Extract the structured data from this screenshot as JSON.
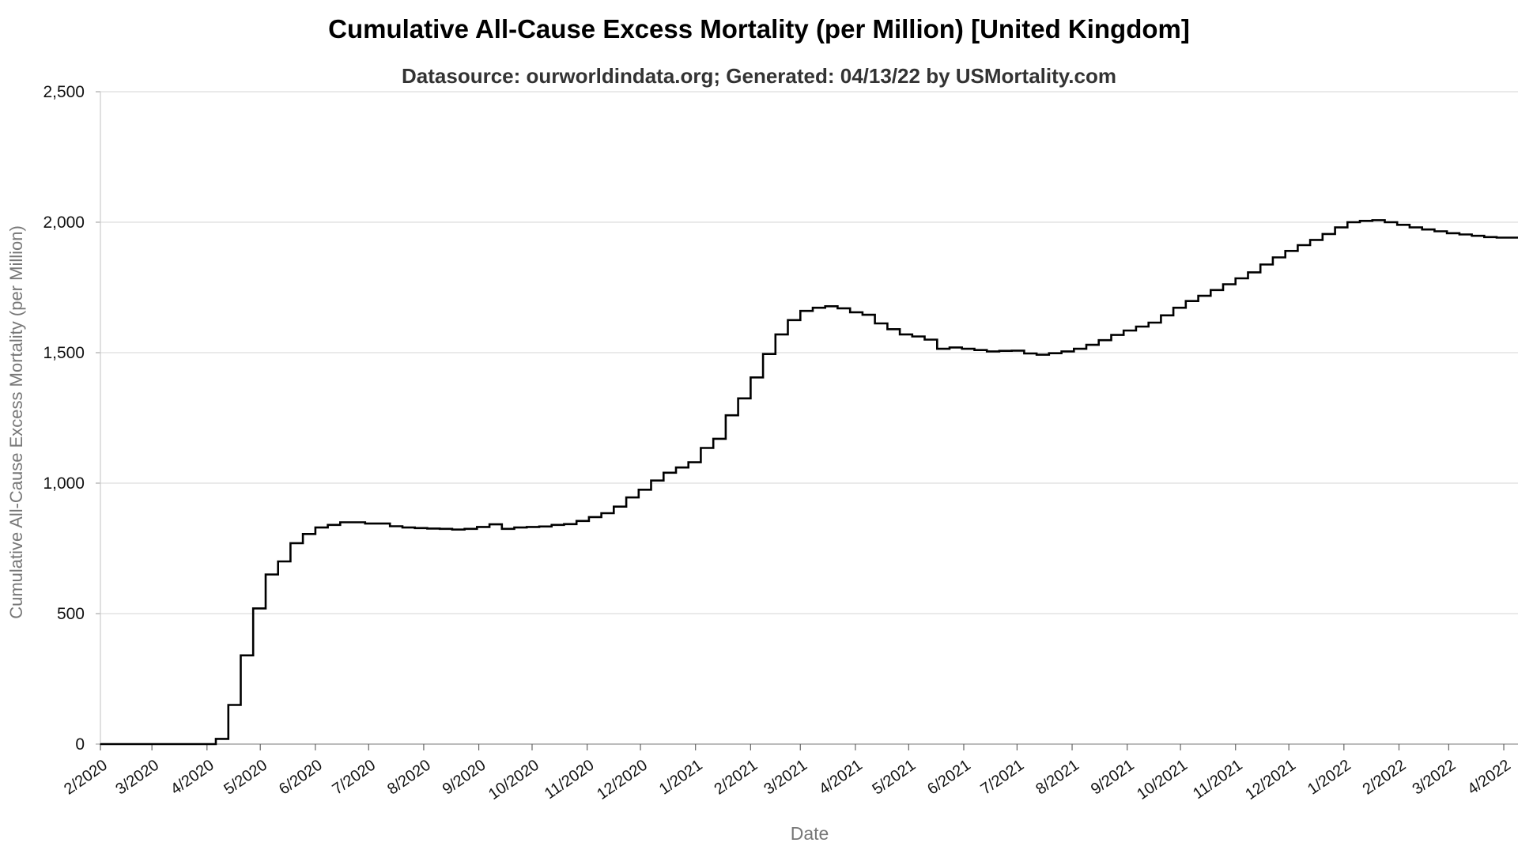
{
  "chart_data": {
    "type": "line",
    "title": "Cumulative All-Cause Excess Mortality (per Million) [United Kingdom]",
    "subtitle": "Datasource: ourworldindata.org; Generated: 04/13/22 by USMortality.com",
    "xlabel": "Date",
    "ylabel": "Cumulative All-Cause Excess Mortality (per Million)",
    "ylim": [
      0,
      2500
    ],
    "y_ticks": [
      0,
      500,
      1000,
      1500,
      2000,
      2500
    ],
    "y_tick_labels": [
      "0",
      "500",
      "1,000",
      "1,500",
      "2,000",
      "2,500"
    ],
    "x_ticks": [
      "2020-02-01",
      "2020-03-01",
      "2020-04-01",
      "2020-05-01",
      "2020-06-01",
      "2020-07-01",
      "2020-08-01",
      "2020-09-01",
      "2020-10-01",
      "2020-11-01",
      "2020-12-01",
      "2021-01-01",
      "2021-02-01",
      "2021-03-01",
      "2021-04-01",
      "2021-05-01",
      "2021-06-01",
      "2021-07-01",
      "2021-08-01",
      "2021-09-01",
      "2021-10-01",
      "2021-11-01",
      "2021-12-01",
      "2022-01-01",
      "2022-02-01",
      "2022-03-01",
      "2022-04-01"
    ],
    "x_tick_labels": [
      "2/2020",
      "3/2020",
      "4/2020",
      "5/2020",
      "6/2020",
      "7/2020",
      "8/2020",
      "9/2020",
      "10/2020",
      "11/2020",
      "12/2020",
      "1/2021",
      "2/2021",
      "3/2021",
      "4/2021",
      "5/2021",
      "6/2021",
      "7/2021",
      "8/2021",
      "9/2021",
      "10/2021",
      "11/2021",
      "12/2021",
      "1/2022",
      "2/2022",
      "3/2022",
      "4/2022"
    ],
    "x_range": [
      "2020-02-01",
      "2022-04-09"
    ],
    "grid": true,
    "legend": "none",
    "line_color": "#000000",
    "step": true,
    "series": [
      {
        "points": [
          [
            "2020-02-01",
            0
          ],
          [
            "2020-04-05",
            0
          ],
          [
            "2020-04-06",
            20
          ],
          [
            "2020-04-13",
            150
          ],
          [
            "2020-04-20",
            340
          ],
          [
            "2020-04-27",
            520
          ],
          [
            "2020-05-04",
            650
          ],
          [
            "2020-05-11",
            700
          ],
          [
            "2020-05-18",
            770
          ],
          [
            "2020-05-25",
            805
          ],
          [
            "2020-06-01",
            830
          ],
          [
            "2020-06-08",
            840
          ],
          [
            "2020-06-15",
            850
          ],
          [
            "2020-06-29",
            845
          ],
          [
            "2020-07-13",
            835
          ],
          [
            "2020-07-20",
            830
          ],
          [
            "2020-07-27",
            828
          ],
          [
            "2020-08-03",
            826
          ],
          [
            "2020-08-10",
            825
          ],
          [
            "2020-08-17",
            822
          ],
          [
            "2020-08-24",
            825
          ],
          [
            "2020-08-31",
            832
          ],
          [
            "2020-09-07",
            842
          ],
          [
            "2020-09-14",
            825
          ],
          [
            "2020-09-21",
            830
          ],
          [
            "2020-09-28",
            832
          ],
          [
            "2020-10-05",
            834
          ],
          [
            "2020-10-12",
            840
          ],
          [
            "2020-10-19",
            843
          ],
          [
            "2020-10-26",
            855
          ],
          [
            "2020-11-02",
            870
          ],
          [
            "2020-11-09",
            885
          ],
          [
            "2020-11-16",
            910
          ],
          [
            "2020-11-23",
            945
          ],
          [
            "2020-11-30",
            975
          ],
          [
            "2020-12-07",
            1010
          ],
          [
            "2020-12-14",
            1040
          ],
          [
            "2020-12-21",
            1060
          ],
          [
            "2020-12-28",
            1080
          ],
          [
            "2021-01-04",
            1135
          ],
          [
            "2021-01-11",
            1170
          ],
          [
            "2021-01-18",
            1260
          ],
          [
            "2021-01-25",
            1325
          ],
          [
            "2021-02-01",
            1405
          ],
          [
            "2021-02-08",
            1495
          ],
          [
            "2021-02-15",
            1570
          ],
          [
            "2021-02-22",
            1625
          ],
          [
            "2021-03-01",
            1660
          ],
          [
            "2021-03-08",
            1672
          ],
          [
            "2021-03-15",
            1678
          ],
          [
            "2021-03-22",
            1670
          ],
          [
            "2021-03-29",
            1655
          ],
          [
            "2021-04-05",
            1645
          ],
          [
            "2021-04-12",
            1612
          ],
          [
            "2021-04-19",
            1590
          ],
          [
            "2021-04-26",
            1570
          ],
          [
            "2021-05-03",
            1562
          ],
          [
            "2021-05-10",
            1550
          ],
          [
            "2021-05-17",
            1515
          ],
          [
            "2021-05-24",
            1520
          ],
          [
            "2021-05-31",
            1515
          ],
          [
            "2021-06-07",
            1510
          ],
          [
            "2021-06-14",
            1505
          ],
          [
            "2021-06-21",
            1507
          ],
          [
            "2021-06-28",
            1508
          ],
          [
            "2021-07-05",
            1497
          ],
          [
            "2021-07-12",
            1492
          ],
          [
            "2021-07-19",
            1498
          ],
          [
            "2021-07-26",
            1505
          ],
          [
            "2021-08-02",
            1515
          ],
          [
            "2021-08-09",
            1530
          ],
          [
            "2021-08-16",
            1548
          ],
          [
            "2021-08-23",
            1568
          ],
          [
            "2021-08-30",
            1585
          ],
          [
            "2021-09-06",
            1600
          ],
          [
            "2021-09-13",
            1615
          ],
          [
            "2021-09-20",
            1643
          ],
          [
            "2021-09-27",
            1672
          ],
          [
            "2021-10-04",
            1698
          ],
          [
            "2021-10-11",
            1718
          ],
          [
            "2021-10-18",
            1740
          ],
          [
            "2021-10-25",
            1762
          ],
          [
            "2021-11-01",
            1785
          ],
          [
            "2021-11-08",
            1808
          ],
          [
            "2021-11-15",
            1838
          ],
          [
            "2021-11-22",
            1865
          ],
          [
            "2021-11-29",
            1890
          ],
          [
            "2021-12-06",
            1912
          ],
          [
            "2021-12-13",
            1932
          ],
          [
            "2021-12-20",
            1955
          ],
          [
            "2021-12-27",
            1980
          ],
          [
            "2022-01-03",
            2000
          ],
          [
            "2022-01-10",
            2005
          ],
          [
            "2022-01-17",
            2008
          ],
          [
            "2022-01-24",
            2000
          ],
          [
            "2022-01-31",
            1990
          ],
          [
            "2022-02-07",
            1980
          ],
          [
            "2022-02-14",
            1972
          ],
          [
            "2022-02-21",
            1965
          ],
          [
            "2022-02-28",
            1958
          ],
          [
            "2022-03-07",
            1953
          ],
          [
            "2022-03-14",
            1948
          ],
          [
            "2022-03-21",
            1943
          ],
          [
            "2022-03-28",
            1941
          ],
          [
            "2022-04-09",
            1941
          ]
        ]
      }
    ]
  }
}
